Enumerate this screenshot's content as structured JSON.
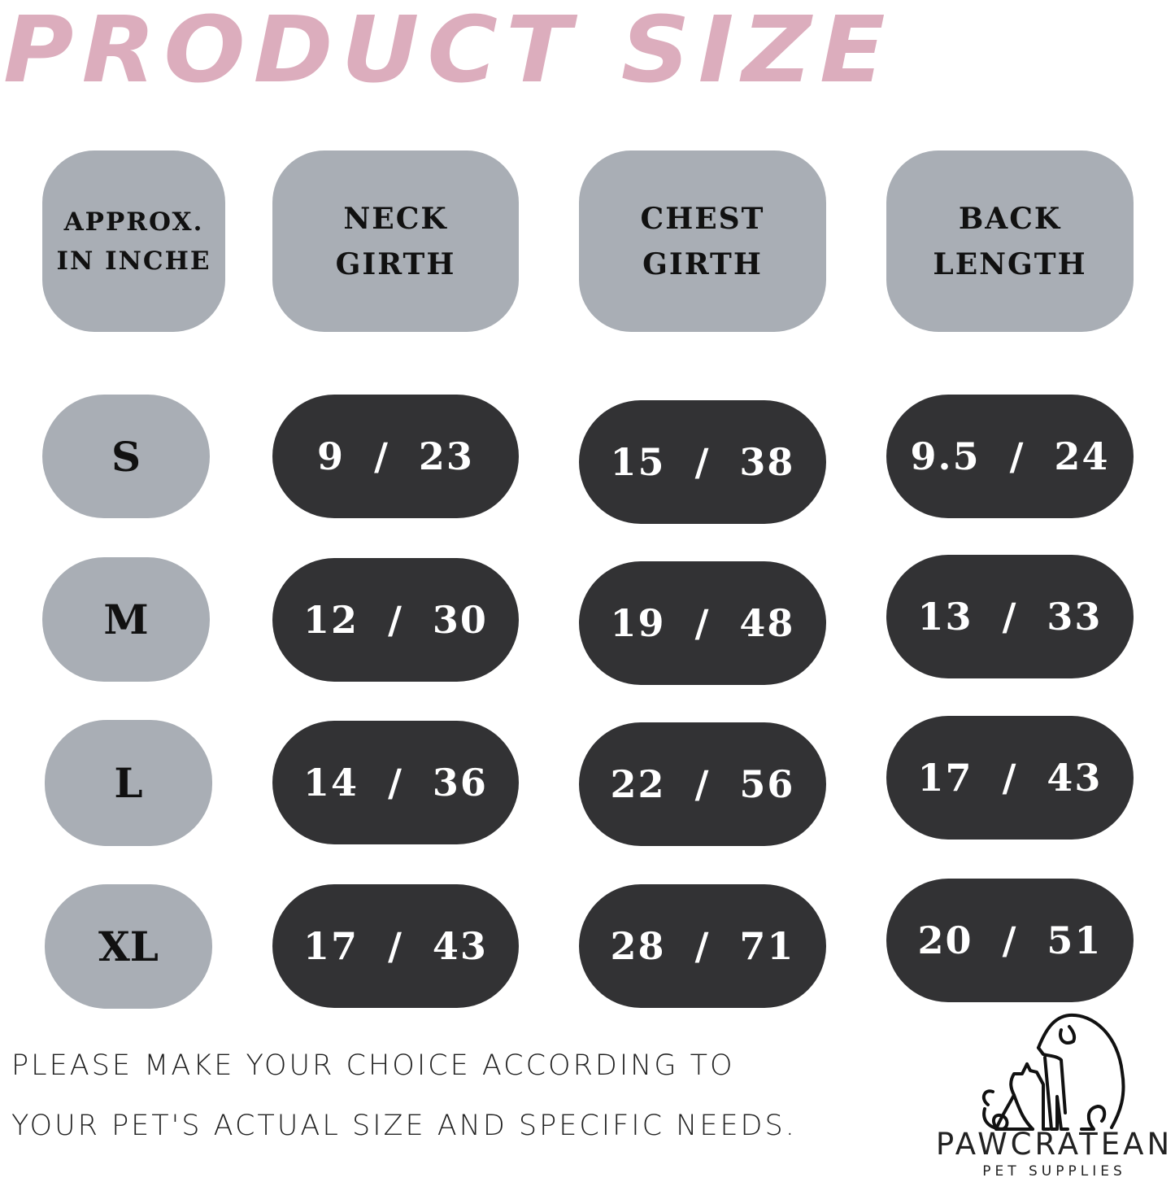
{
  "colors": {
    "title_pink": "#dcadbd",
    "header_grey": "#a9aeb5",
    "value_dark": "#323234"
  },
  "title": "PRODUCT SIZE",
  "headers": [
    {
      "line1": "APPROX.",
      "line2": "IN INCHE"
    },
    {
      "line1": "NECK",
      "line2": "GIRTH"
    },
    {
      "line1": "CHEST",
      "line2": "GIRTH"
    },
    {
      "line1": "BACK",
      "line2": "LENGTH"
    }
  ],
  "rows": [
    {
      "size": "S",
      "neck": "9  /  23",
      "chest": "15  /  38",
      "back": "9.5  /  24"
    },
    {
      "size": "M",
      "neck": "12  /  30",
      "chest": "19  /  48",
      "back": "13  /  33"
    },
    {
      "size": "L",
      "neck": "14  /  36",
      "chest": "22  /  56",
      "back": "17  /  43"
    },
    {
      "size": "XL",
      "neck": "17  /  43",
      "chest": "28  /  71",
      "back": "20  /  51"
    }
  ],
  "note": {
    "line1": "PLEASE MAKE YOUR CHOICE ACCORDING TO",
    "line2": "YOUR PET'S ACTUAL SIZE AND SPECIFIC NEEDS."
  },
  "logo": {
    "brand": "PAWCRATEAN",
    "tagline": "PET SUPPLIES",
    "icon": "dog-and-cat-outline-icon"
  }
}
